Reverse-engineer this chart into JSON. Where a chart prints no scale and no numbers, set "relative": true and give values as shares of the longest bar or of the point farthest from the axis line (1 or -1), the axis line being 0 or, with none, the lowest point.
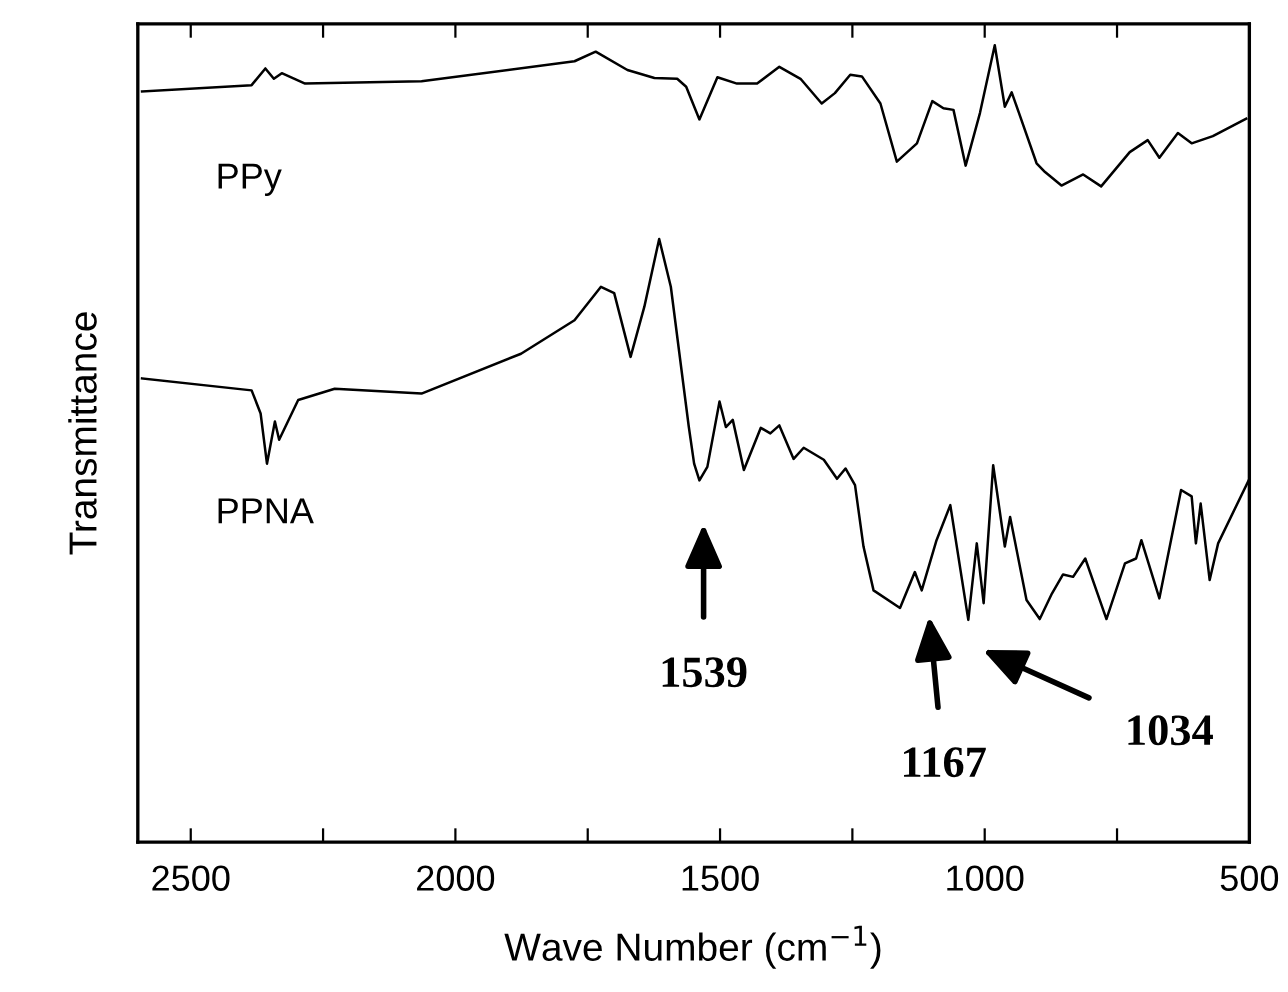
{
  "chart_data": {
    "type": "line",
    "relative": true,
    "xlabel": "Wave Number (cm$^{−1}$)",
    "ylabel": "Transmittance",
    "xlim": [
      2600,
      500
    ],
    "xticks": [
      2500,
      {
        "value": 2250,
        "label": null
      },
      2000,
      {
        "value": 1750,
        "label": null
      },
      1500,
      {
        "value": 1250,
        "label": null
      },
      1000,
      {
        "value": 750,
        "label": null
      },
      500
    ],
    "grid": false,
    "legend": false,
    "marker": "none",
    "line_style": "solid",
    "series": [
      {
        "name": "PPy",
        "color": "#000000",
        "x": [
          2592,
          2385,
          2359,
          2343,
          2328,
          2284,
          2064,
          1775,
          1735,
          1675,
          1624,
          1581,
          1564,
          1539,
          1505,
          1468,
          1430,
          1388,
          1348,
          1308,
          1283,
          1254,
          1232,
          1197,
          1166,
          1128,
          1099,
          1078,
          1059,
          1036,
          1009,
          981,
          962,
          949,
          902,
          886,
          855,
          814,
          780,
          726,
          692,
          670,
          635,
          609,
          569,
          506
        ],
        "values": [
          0.942,
          0.95,
          0.971,
          0.958,
          0.965,
          0.952,
          0.955,
          0.98,
          0.992,
          0.969,
          0.959,
          0.958,
          0.948,
          0.907,
          0.96,
          0.952,
          0.952,
          0.973,
          0.958,
          0.927,
          0.94,
          0.963,
          0.961,
          0.927,
          0.854,
          0.877,
          0.93,
          0.921,
          0.919,
          0.849,
          0.915,
          1.0,
          0.923,
          0.941,
          0.852,
          0.841,
          0.824,
          0.838,
          0.823,
          0.866,
          0.881,
          0.859,
          0.89,
          0.877,
          0.886,
          0.908
        ]
      },
      {
        "name": "PPNA",
        "color": "#000000",
        "x": [
          2592,
          2385,
          2368,
          2356,
          2341,
          2333,
          2297,
          2228,
          2064,
          1876,
          1775,
          1725,
          1700,
          1669,
          1643,
          1615,
          1593,
          1559,
          1549,
          1539,
          1524,
          1501,
          1489,
          1476,
          1455,
          1423,
          1405,
          1388,
          1361,
          1342,
          1304,
          1279,
          1263,
          1245,
          1229,
          1210,
          1160,
          1132,
          1119,
          1091,
          1065,
          1031,
          1015,
          1002,
          984,
          962,
          952,
          921,
          896,
          873,
          852,
          833,
          810,
          770,
          735,
          714,
          704,
          670,
          629,
          609,
          601,
          592,
          575,
          559,
          500
        ],
        "values": [
          0.582,
          0.567,
          0.538,
          0.475,
          0.528,
          0.505,
          0.555,
          0.569,
          0.563,
          0.613,
          0.655,
          0.697,
          0.689,
          0.609,
          0.672,
          0.757,
          0.697,
          0.521,
          0.475,
          0.454,
          0.471,
          0.553,
          0.521,
          0.53,
          0.467,
          0.52,
          0.513,
          0.523,
          0.481,
          0.495,
          0.48,
          0.456,
          0.469,
          0.448,
          0.371,
          0.316,
          0.294,
          0.339,
          0.316,
          0.379,
          0.423,
          0.279,
          0.375,
          0.3,
          0.473,
          0.371,
          0.408,
          0.304,
          0.28,
          0.312,
          0.336,
          0.333,
          0.356,
          0.28,
          0.35,
          0.356,
          0.379,
          0.306,
          0.442,
          0.434,
          0.375,
          0.425,
          0.329,
          0.375,
          0.456
        ]
      }
    ],
    "annotations": [
      "1539",
      "1167",
      "1034"
    ]
  }
}
